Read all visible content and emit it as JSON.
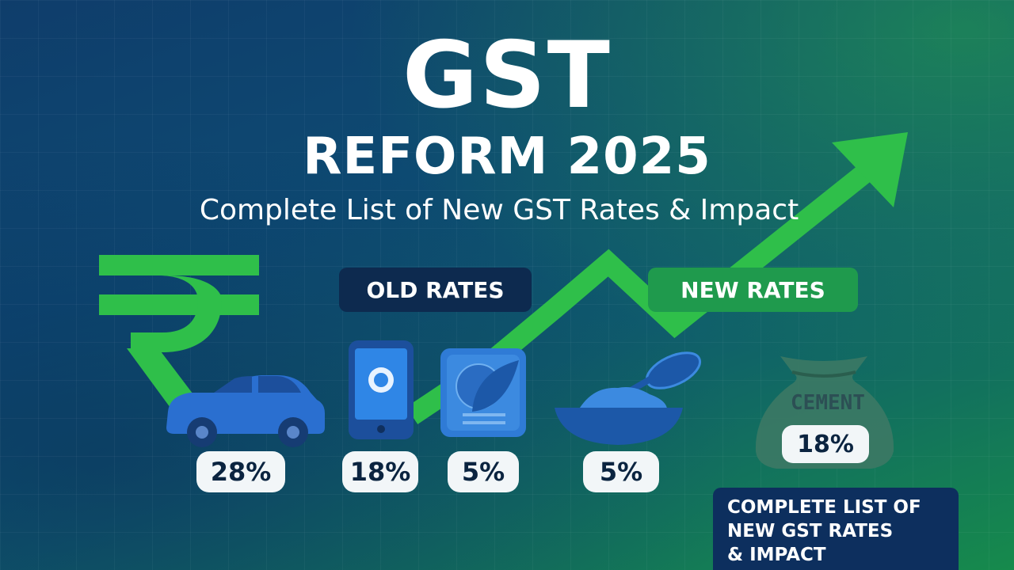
{
  "title": "GST",
  "subtitle": "REFORM 2025",
  "tagline": "Complete List of New GST Rates & Impact",
  "labels": {
    "old_rates": "OLD RATES",
    "new_rates": "NEW RATES"
  },
  "items": [
    {
      "icon": "car-icon",
      "rate": "28%"
    },
    {
      "icon": "smartphone-icon",
      "rate": "18%"
    },
    {
      "icon": "packaged-goods-icon",
      "rate": "5%"
    },
    {
      "icon": "food-bowl-icon",
      "rate": "5%"
    }
  ],
  "cement": {
    "icon": "cement-sack-icon",
    "label": "CEMENT",
    "rate": "18%"
  },
  "info_box": {
    "line1": "COMPLETE LIST OF",
    "line2": "NEW GST RATES",
    "line3": "& IMPACT"
  },
  "colors": {
    "background_top": "#0f3d6b",
    "background_bottom_right": "#168a4c",
    "accent_green": "#2fbf4a",
    "rupee_green": "#2fbf4a",
    "icon_blue": "#2a6fd0"
  },
  "decorations": [
    "rupee-icon",
    "trend-arrow-icon"
  ]
}
